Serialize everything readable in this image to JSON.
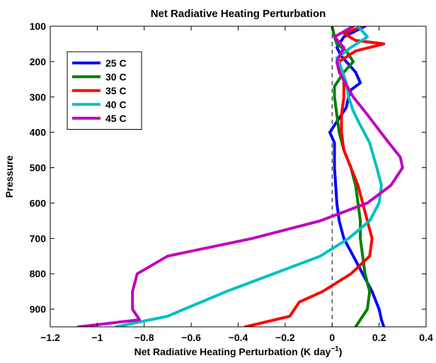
{
  "chart_data": {
    "type": "line",
    "title": "Net Radiative Heating Perturbation",
    "xlabel": "Net Radiative Heating Perturbation (K day",
    "xlabel_superscript": "−1",
    "xlabel_suffix": ")",
    "ylabel": "Pressure",
    "xlim": [
      -1.2,
      0.4
    ],
    "ylim": [
      100,
      950
    ],
    "y_inverted": true,
    "x_ticks": [
      -1.2,
      -1,
      -0.8,
      -0.6,
      -0.4,
      -0.2,
      0,
      0.2,
      0.4
    ],
    "x_tick_labels": [
      "−1.2",
      "−1",
      "−0.8",
      "−0.6",
      "−0.4",
      "−0.2",
      "0",
      "0.2",
      "0.4"
    ],
    "y_ticks": [
      100,
      200,
      300,
      400,
      500,
      600,
      700,
      800,
      900
    ],
    "y_tick_labels": [
      "100",
      "200",
      "300",
      "400",
      "500",
      "600",
      "700",
      "800",
      "900"
    ],
    "grid": false,
    "reference_line": {
      "x": 0,
      "style": "dashed"
    },
    "legend_position": "top-left",
    "series": [
      {
        "name": "25 C",
        "color": "#0000ff",
        "points": [
          [
            0.14,
            100
          ],
          [
            0.05,
            130
          ],
          [
            0.02,
            160
          ],
          [
            0.04,
            185
          ],
          [
            0.06,
            200
          ],
          [
            0.1,
            230
          ],
          [
            0.12,
            260
          ],
          [
            0.08,
            280
          ],
          [
            0.07,
            300
          ],
          [
            0.06,
            330
          ],
          [
            0.03,
            360
          ],
          [
            0.0,
            390
          ],
          [
            -0.01,
            400
          ],
          [
            0.01,
            430
          ],
          [
            0.01,
            500
          ],
          [
            0.02,
            600
          ],
          [
            0.03,
            650
          ],
          [
            0.05,
            700
          ],
          [
            0.09,
            750
          ],
          [
            0.13,
            800
          ],
          [
            0.17,
            850
          ],
          [
            0.2,
            900
          ],
          [
            0.21,
            930
          ],
          [
            0.22,
            950
          ]
        ]
      },
      {
        "name": "30 C",
        "color": "#008000",
        "points": [
          [
            0.0,
            100
          ],
          [
            0.01,
            130
          ],
          [
            0.02,
            150
          ],
          [
            0.06,
            170
          ],
          [
            0.09,
            200
          ],
          [
            0.05,
            230
          ],
          [
            0.01,
            270
          ],
          [
            0.01,
            300
          ],
          [
            0.02,
            350
          ],
          [
            0.03,
            400
          ],
          [
            0.05,
            450
          ],
          [
            0.08,
            500
          ],
          [
            0.1,
            550
          ],
          [
            0.11,
            600
          ],
          [
            0.12,
            650
          ],
          [
            0.12,
            700
          ],
          [
            0.13,
            750
          ],
          [
            0.14,
            800
          ],
          [
            0.16,
            850
          ],
          [
            0.15,
            900
          ],
          [
            0.13,
            920
          ],
          [
            0.1,
            950
          ]
        ]
      },
      {
        "name": "35 C",
        "color": "#ff0000",
        "points": [
          [
            0.13,
            100
          ],
          [
            0.05,
            120
          ],
          [
            0.1,
            140
          ],
          [
            0.22,
            150
          ],
          [
            0.1,
            170
          ],
          [
            0.03,
            200
          ],
          [
            0.05,
            250
          ],
          [
            0.05,
            300
          ],
          [
            0.04,
            350
          ],
          [
            0.04,
            400
          ],
          [
            0.05,
            450
          ],
          [
            0.08,
            500
          ],
          [
            0.11,
            550
          ],
          [
            0.13,
            600
          ],
          [
            0.15,
            650
          ],
          [
            0.17,
            700
          ],
          [
            0.16,
            750
          ],
          [
            0.08,
            800
          ],
          [
            -0.04,
            850
          ],
          [
            -0.14,
            880
          ],
          [
            -0.18,
            920
          ],
          [
            -0.37,
            950
          ]
        ]
      },
      {
        "name": "40 C",
        "color": "#00c0c0",
        "points": [
          [
            0.11,
            100
          ],
          [
            0.15,
            130
          ],
          [
            0.08,
            160
          ],
          [
            0.02,
            190
          ],
          [
            0.04,
            220
          ],
          [
            0.06,
            260
          ],
          [
            0.07,
            300
          ],
          [
            0.09,
            340
          ],
          [
            0.12,
            380
          ],
          [
            0.16,
            430
          ],
          [
            0.19,
            500
          ],
          [
            0.21,
            550
          ],
          [
            0.2,
            600
          ],
          [
            0.16,
            650
          ],
          [
            0.07,
            700
          ],
          [
            -0.05,
            750
          ],
          [
            -0.25,
            800
          ],
          [
            -0.45,
            850
          ],
          [
            -0.63,
            900
          ],
          [
            -0.7,
            920
          ],
          [
            -0.92,
            950
          ]
        ]
      },
      {
        "name": "45 C",
        "color": "#c000c0",
        "points": [
          [
            0.09,
            100
          ],
          [
            0.01,
            130
          ],
          [
            0.05,
            160
          ],
          [
            0.02,
            200
          ],
          [
            0.03,
            230
          ],
          [
            0.09,
            300
          ],
          [
            0.15,
            350
          ],
          [
            0.23,
            420
          ],
          [
            0.29,
            470
          ],
          [
            0.3,
            500
          ],
          [
            0.25,
            550
          ],
          [
            0.15,
            600
          ],
          [
            -0.05,
            650
          ],
          [
            -0.34,
            700
          ],
          [
            -0.7,
            750
          ],
          [
            -0.83,
            800
          ],
          [
            -0.85,
            850
          ],
          [
            -0.85,
            900
          ],
          [
            -0.82,
            930
          ],
          [
            -1.08,
            950
          ]
        ]
      }
    ]
  }
}
